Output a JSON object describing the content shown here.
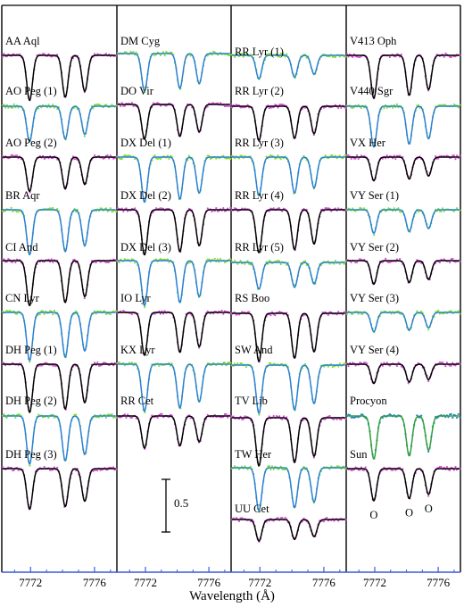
{
  "chart_data": {
    "type": "line",
    "xlabel": "Wavelength (Å)",
    "xticks": [
      7772,
      7776
    ],
    "xlim": [
      7770.2,
      7777.4
    ],
    "lines_angstrom": [
      7771.94,
      7774.17,
      7775.39
    ],
    "scale_bar_label": "0.5",
    "sun_line_markers": [
      "O",
      "O",
      "O"
    ],
    "colors": {
      "model_black": "#000000",
      "model_blue": "#2a7fd4",
      "model_green": "#2f9e3a",
      "obs_magenta": "#d84fd8",
      "obs_green": "#7fe030",
      "obs_grey": "#8a8a8a",
      "axis_blue": "#3c5adc"
    },
    "panels": [
      {
        "stars": [
          {
            "name": "AA Aql",
            "depth": 0.42,
            "color": "#000000",
            "obs": "#d84fd8"
          },
          {
            "name": "AO Peg (1)",
            "depth": 0.33,
            "color": "#2a7fd4",
            "obs": "#7fe030"
          },
          {
            "name": "AO Peg (2)",
            "depth": 0.32,
            "color": "#000000",
            "obs": "#d84fd8"
          },
          {
            "name": "BR Aqr",
            "depth": 0.42,
            "color": "#2a7fd4",
            "obs": "#7fe030"
          },
          {
            "name": "CI And",
            "depth": 0.42,
            "color": "#000000",
            "obs": "#d84fd8"
          },
          {
            "name": "CN Lyr",
            "depth": 0.45,
            "color": "#2a7fd4",
            "obs": "#7fe030"
          },
          {
            "name": "DH Peg (1)",
            "depth": 0.45,
            "color": "#000000",
            "obs": "#d84fd8"
          },
          {
            "name": "DH Peg (2)",
            "depth": 0.45,
            "color": "#2a7fd4",
            "obs": "#7fe030"
          },
          {
            "name": "DH Peg (3)",
            "depth": 0.38,
            "color": "#000000",
            "obs": "#d84fd8"
          }
        ]
      },
      {
        "stars": [
          {
            "name": "DM Cyg",
            "depth": 0.35,
            "color": "#2a7fd4",
            "obs": "#7fe030"
          },
          {
            "name": "DO Vir",
            "depth": 0.32,
            "color": "#000000",
            "obs": "#d84fd8"
          },
          {
            "name": "DX Del (1)",
            "depth": 0.42,
            "color": "#2a7fd4",
            "obs": "#7fe030"
          },
          {
            "name": "DX Del (2)",
            "depth": 0.42,
            "color": "#000000",
            "obs": "#d84fd8"
          },
          {
            "name": "DX Del (3)",
            "depth": 0.42,
            "color": "#2a7fd4",
            "obs": "#7fe030"
          },
          {
            "name": "IO Lyr",
            "depth": 0.4,
            "color": "#000000",
            "obs": "#d84fd8"
          },
          {
            "name": "KX Lyr",
            "depth": 0.44,
            "color": "#2a7fd4",
            "obs": "#7fe030"
          },
          {
            "name": "RR Cet",
            "depth": 0.3,
            "color": "#000000",
            "obs": "#d84fd8"
          }
        ]
      },
      {
        "stars": [
          {
            "name": "RR Lyr (1)",
            "depth": 0.22,
            "color": "#2a7fd4",
            "obs": "#7fe030"
          },
          {
            "name": "RR Lyr (2)",
            "depth": 0.32,
            "color": "#000000",
            "obs": "#d84fd8"
          },
          {
            "name": "RR Lyr (3)",
            "depth": 0.36,
            "color": "#2a7fd4",
            "obs": "#7fe030"
          },
          {
            "name": "RR Lyr (4)",
            "depth": 0.4,
            "color": "#000000",
            "obs": "#d84fd8"
          },
          {
            "name": "RR Lyr (5)",
            "depth": 0.25,
            "color": "#2a7fd4",
            "obs": "#7fe030"
          },
          {
            "name": "RS Boo",
            "depth": 0.45,
            "color": "#000000",
            "obs": "#d84fd8"
          },
          {
            "name": "SW And",
            "depth": 0.45,
            "color": "#2a7fd4",
            "obs": "#7fe030"
          },
          {
            "name": "TV Lib",
            "depth": 0.45,
            "color": "#000000",
            "obs": "#d84fd8"
          },
          {
            "name": "TW Her",
            "depth": 0.4,
            "color": "#2a7fd4",
            "obs": "#7fe030"
          },
          {
            "name": "UU Cet",
            "depth": 0.2,
            "color": "#000000",
            "obs": "#d84fd8"
          }
        ]
      },
      {
        "stars": [
          {
            "name": "V413 Oph",
            "depth": 0.4,
            "color": "#000000",
            "obs": "#d84fd8"
          },
          {
            "name": "V440 Sgr",
            "depth": 0.38,
            "color": "#2a7fd4",
            "obs": "#7fe030"
          },
          {
            "name": "VX Her",
            "depth": 0.22,
            "color": "#000000",
            "obs": "#d84fd8"
          },
          {
            "name": "VY Ser (1)",
            "depth": 0.22,
            "color": "#2a7fd4",
            "obs": "#7fe030"
          },
          {
            "name": "VY Ser (2)",
            "depth": 0.22,
            "color": "#000000",
            "obs": "#d84fd8"
          },
          {
            "name": "VY Ser (3)",
            "depth": 0.18,
            "color": "#2a7fd4",
            "obs": "#7fe030"
          },
          {
            "name": "VY Ser (4)",
            "depth": 0.18,
            "color": "#000000",
            "obs": "#d84fd8"
          },
          {
            "name": "Procyon",
            "depth": 0.4,
            "color": "#2f9e3a",
            "obs": "#2a7fd4"
          },
          {
            "name": "Sun",
            "depth": 0.3,
            "color": "#000000",
            "obs": "#d84fd8"
          }
        ]
      }
    ]
  }
}
